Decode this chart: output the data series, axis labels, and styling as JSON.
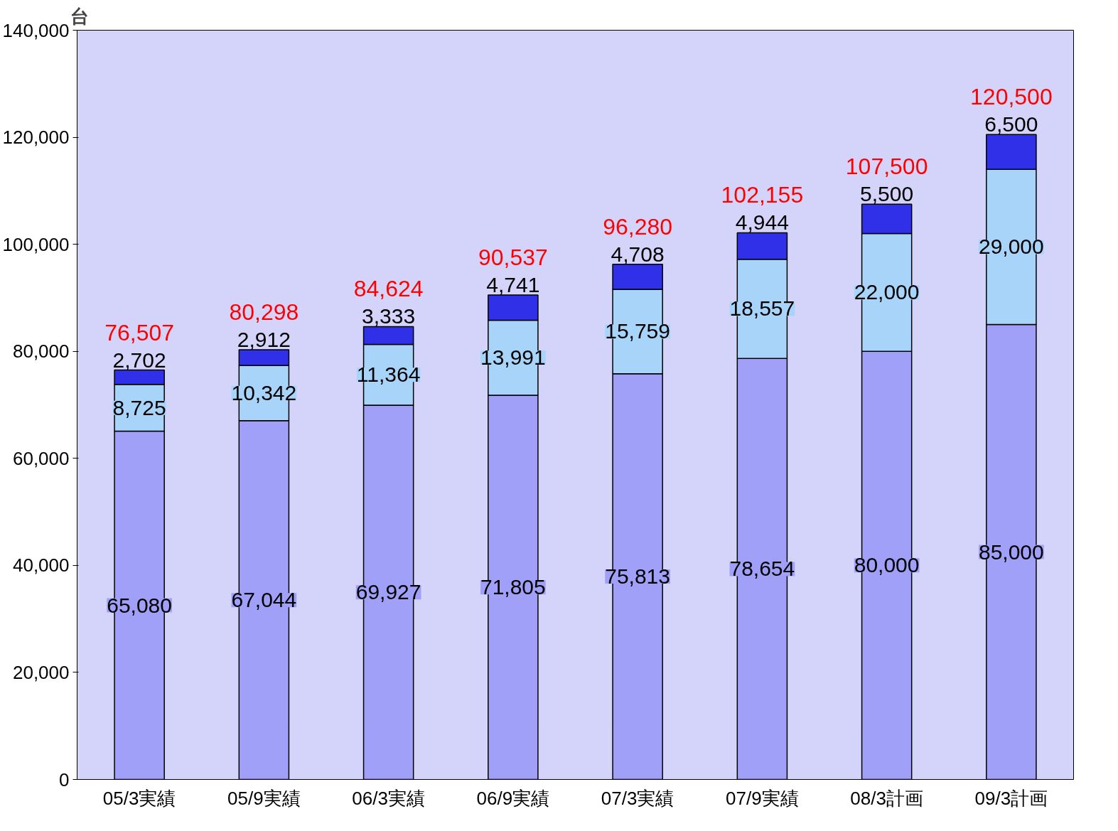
{
  "chart_data": {
    "type": "bar",
    "stacked": true,
    "ylabel": "台",
    "categories": [
      "05/3実績",
      "05/9実績",
      "06/3実績",
      "06/9実績",
      "07/3実績",
      "07/9実績",
      "08/3計画",
      "09/3計画"
    ],
    "series": [
      {
        "color": "#a0a0f8",
        "values": [
          65080,
          67044,
          69927,
          71805,
          75813,
          78654,
          80000,
          85000
        ],
        "value_labels": [
          "65,080",
          "67,044",
          "69,927",
          "71,805",
          "75,813",
          "78,654",
          "80,000",
          "85,000"
        ]
      },
      {
        "color": "#a8d4fa",
        "values": [
          8725,
          10342,
          11364,
          13991,
          15759,
          18557,
          22000,
          29000
        ],
        "value_labels": [
          "8,725",
          "10,342",
          "11,364",
          "13,991",
          "15,759",
          "18,557",
          "22,000",
          "29,000"
        ]
      },
      {
        "color": "#3030e8",
        "values": [
          2702,
          2912,
          3333,
          4741,
          4708,
          4944,
          5500,
          6500
        ],
        "value_labels": [
          "2,702",
          "2,912",
          "3,333",
          "4,741",
          "4,708",
          "4,944",
          "5,500",
          "6,500"
        ]
      }
    ],
    "totals": [
      "76,507",
      "80,298",
      "84,624",
      "90,537",
      "96,280",
      "102,155",
      "107,500",
      "120,500"
    ],
    "ylim": [
      0,
      140000
    ],
    "yticks": [
      {
        "value": 0,
        "label": "0"
      },
      {
        "value": 20000,
        "label": "20,000"
      },
      {
        "value": 40000,
        "label": "40,000"
      },
      {
        "value": 60000,
        "label": "60,000"
      },
      {
        "value": 80000,
        "label": "80,000"
      },
      {
        "value": 100000,
        "label": "100,000"
      },
      {
        "value": 120000,
        "label": "120,000"
      },
      {
        "value": 140000,
        "label": "140,000"
      }
    ],
    "grid": false
  }
}
